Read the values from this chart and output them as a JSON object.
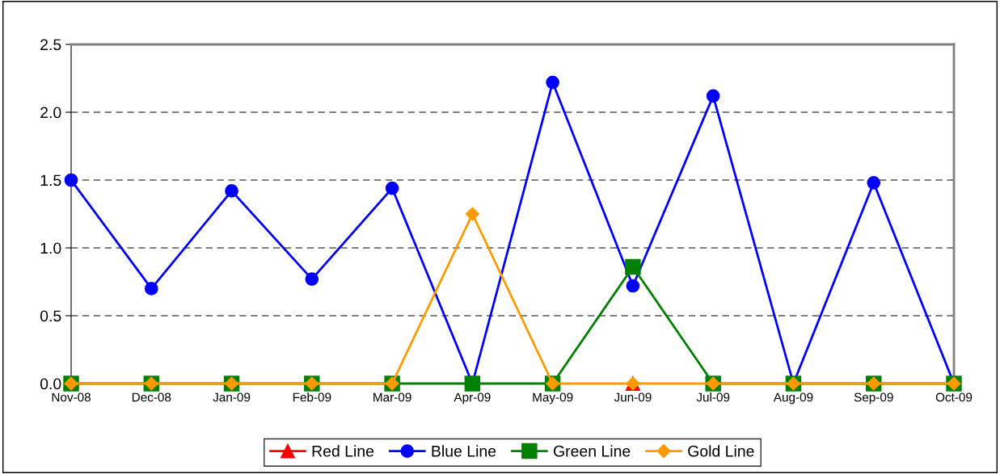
{
  "chart_data": {
    "type": "line",
    "categories": [
      "Nov-08",
      "Dec-08",
      "Jan-09",
      "Feb-09",
      "Mar-09",
      "Apr-09",
      "May-09",
      "Jun-09",
      "Jul-09",
      "Aug-09",
      "Sep-09",
      "Oct-09"
    ],
    "series": [
      {
        "name": "Red Line",
        "color": "#ff0000",
        "marker": "triangle",
        "values": [
          null,
          null,
          null,
          null,
          null,
          null,
          null,
          0,
          null,
          null,
          null,
          null
        ]
      },
      {
        "name": "Blue Line",
        "color": "#0000ff",
        "marker": "circle",
        "values": [
          1.5,
          0.7,
          1.42,
          0.77,
          1.44,
          0,
          2.22,
          0.72,
          2.12,
          0,
          1.48,
          0
        ]
      },
      {
        "name": "Green Line",
        "color": "#008000",
        "marker": "square",
        "values": [
          0,
          0,
          0,
          0,
          0,
          0,
          0,
          0.86,
          0,
          0,
          0,
          0
        ]
      },
      {
        "name": "Gold Line",
        "color": "#ff9900",
        "marker": "diamond",
        "values": [
          0,
          0,
          0,
          0,
          0,
          1.25,
          0,
          0,
          0,
          0,
          0,
          0
        ]
      }
    ],
    "ylim": [
      0,
      2.5
    ],
    "yticks": [
      {
        "value": 0,
        "label": "0.0"
      },
      {
        "value": 0.5,
        "label": "0.5"
      },
      {
        "value": 1,
        "label": "1.0"
      },
      {
        "value": 1.5,
        "label": "1.5"
      },
      {
        "value": 2,
        "label": "2.0"
      },
      {
        "value": 2.5,
        "label": "2.5"
      }
    ],
    "grid": "y",
    "legend": "bottom",
    "line_style": "solid"
  }
}
